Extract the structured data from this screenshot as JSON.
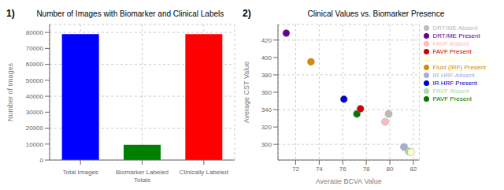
{
  "chart_data": [
    {
      "type": "bar",
      "title": "Number of Images with Biomarker and Clinical Labels",
      "annotations": [
        "1)"
      ],
      "categories": [
        "Total Images",
        "Biomarker Labeled\nTotals",
        "Clinically Labeled"
      ],
      "values": [
        79000,
        9500,
        79000
      ],
      "colors": [
        "blue",
        "green",
        "red"
      ],
      "ylabel": "Number of Images",
      "ylim": [
        0,
        85000
      ],
      "yticks": [
        0,
        10000,
        20000,
        30000,
        40000,
        50000,
        60000,
        70000,
        80000
      ],
      "grid": true
    },
    {
      "type": "scatter",
      "title": "Clinical Values vs. Biomarker Presence",
      "annotations": [
        "2)"
      ],
      "xlabel": "Average BCVA Value",
      "ylabel": "Average CST Value",
      "xlim": [
        70.5,
        82.5
      ],
      "ylim": [
        282,
        438
      ],
      "xticks": [
        72,
        74,
        76,
        78,
        80,
        82
      ],
      "yticks": [
        300,
        320,
        340,
        360,
        380,
        400,
        420
      ],
      "grid": true,
      "legend": "upper right",
      "marker": "circle",
      "series": [
        {
          "name": "IR HRF Absent",
          "color": "#aaaadd",
          "x": [
            81.2
          ],
          "values": [
            297
          ]
        },
        {
          "name": "IR HRF Present",
          "color": "#0000cc",
          "x": [
            76.1
          ],
          "values": [
            352
          ]
        },
        {
          "name": "PAVF Absent",
          "color": "#aaddaa",
          "x": [
            81.6
          ],
          "values": [
            292
          ]
        },
        {
          "name": "PAVF Present",
          "color": "#007700",
          "x": [
            77.2
          ],
          "values": [
            335
          ]
        },
        {
          "name": "FAVF Absent",
          "color": "#ffbbbb",
          "x": [
            79.6
          ],
          "values": [
            326
          ]
        },
        {
          "name": "FAVF Present",
          "color": "#cc0000",
          "x": [
            77.5
          ],
          "values": [
            341
          ]
        },
        {
          "name": "DRT/ME Absent",
          "color": "#bbbbbb",
          "x": [
            79.9
          ],
          "values": [
            335
          ]
        },
        {
          "name": "DRT/ME Present",
          "color": "#660099",
          "x": [
            71.2
          ],
          "values": [
            428
          ]
        },
        {
          "name": "Fluid (IRF) Absent",
          "color": "#ffffcc",
          "x": [
            81.8
          ],
          "values": [
            291
          ]
        },
        {
          "name": "Fluid (IRF) Present",
          "color": "#dd8800",
          "x": [
            73.3
          ],
          "values": [
            395
          ]
        }
      ]
    }
  ]
}
